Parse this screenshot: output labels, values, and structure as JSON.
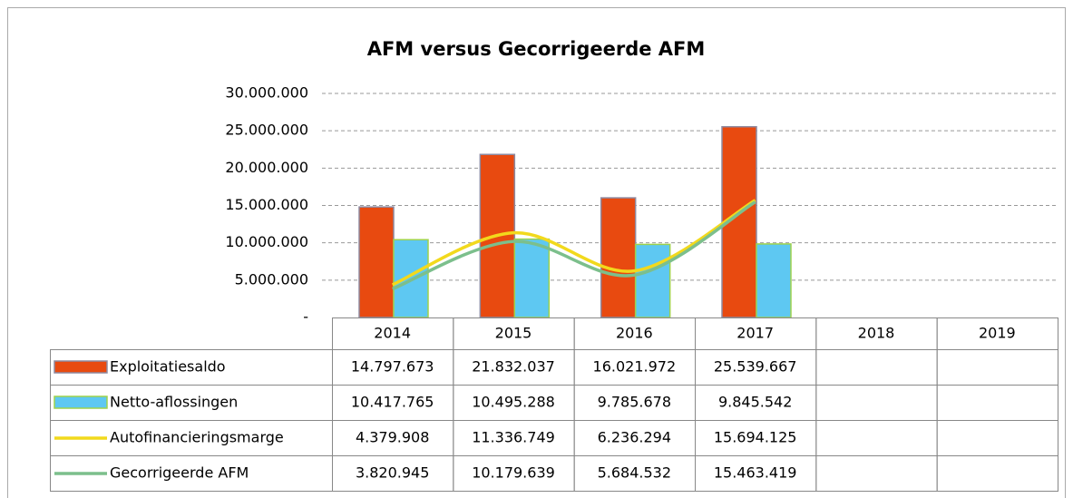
{
  "chart_data": {
    "type": "bar-line-table",
    "title": "AFM versus Gecorrigeerde AFM",
    "categories": [
      "2014",
      "2015",
      "2016",
      "2017",
      "2018",
      "2019"
    ],
    "ylim": [
      0,
      30000000
    ],
    "yticks": [
      {
        "value": 0,
        "label": "-"
      },
      {
        "value": 5000000,
        "label": "5.000.000"
      },
      {
        "value": 10000000,
        "label": "10.000.000"
      },
      {
        "value": 15000000,
        "label": "15.000.000"
      },
      {
        "value": 20000000,
        "label": "20.000.000"
      },
      {
        "value": 25000000,
        "label": "25.000.000"
      },
      {
        "value": 30000000,
        "label": "30.000.000"
      }
    ],
    "grid": true,
    "series": [
      {
        "name": "Exploitatiesaldo",
        "kind": "bar",
        "color": "#e84a10",
        "values": [
          14797673,
          21832037,
          16021972,
          25539667,
          null,
          null
        ],
        "value_labels": [
          "14.797.673",
          "21.832.037",
          "16.021.972",
          "25.539.667",
          null,
          null
        ]
      },
      {
        "name": "Netto-aflossingen",
        "kind": "bar",
        "color": "#5ec8f2",
        "values": [
          10417765,
          10495288,
          9785678,
          9845542,
          null,
          null
        ],
        "value_labels": [
          "10.417.765",
          "10.495.288",
          "9.785.678",
          "9.845.542",
          null,
          null
        ]
      },
      {
        "name": "Autofinancieringsmarge",
        "kind": "line",
        "color": "#f2d91c",
        "values": [
          4379908,
          11336749,
          6236294,
          15694125,
          null,
          null
        ],
        "value_labels": [
          "4.379.908",
          "11.336.749",
          "6.236.294",
          "15.694.125",
          null,
          null
        ]
      },
      {
        "name": "Gecorrigeerde AFM",
        "kind": "line",
        "color": "#7cbf8c",
        "values": [
          3820945,
          10179639,
          5684532,
          15463419,
          null,
          null
        ],
        "value_labels": [
          "3.820.945",
          "10.179.639",
          "5.684.532",
          "15.463.419",
          null,
          null
        ]
      }
    ]
  }
}
